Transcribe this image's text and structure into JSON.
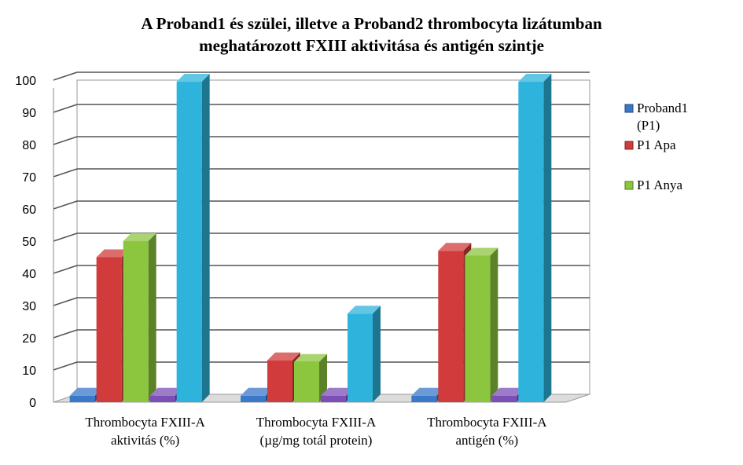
{
  "chart_data": {
    "type": "bar",
    "title": [
      "A Proband1 és szülei, illetve a Proband2 thrombocyta lizátumban",
      "meghatározott FXIII aktivitása és antigén szintje"
    ],
    "categories": [
      [
        "Thrombocyta FXIII-A",
        "aktivitás (%)"
      ],
      [
        "Thrombocyta FXIII-A",
        "(µg/mg totál protein)"
      ],
      [
        "Thrombocyta FXIII-A",
        "antigén (%)"
      ]
    ],
    "ylim": [
      0,
      100
    ],
    "yticks": [
      "0",
      "10",
      "20",
      "30",
      "40",
      "50",
      "60",
      "70",
      "80",
      "90",
      "100"
    ],
    "grid": true,
    "legend_position": "right",
    "series": [
      {
        "name": [
          "Proband1",
          "(P1)"
        ],
        "color": "#3a78c9",
        "values": [
          2,
          2,
          2
        ],
        "show_in_legend": true
      },
      {
        "name": [
          "P1 Apa"
        ],
        "color": "#d13b3b",
        "values": [
          45,
          13,
          47
        ],
        "show_in_legend": true
      },
      {
        "name": [
          "P1 Anya"
        ],
        "color": "#8cc63f",
        "values": [
          50,
          12.5,
          45.5
        ],
        "show_in_legend": true
      },
      {
        "name": [],
        "color": "#7b4fb5",
        "values": [
          2,
          2,
          2
        ],
        "show_in_legend": false
      },
      {
        "name": [],
        "color": "#2eb4dc",
        "values": [
          99.5,
          27.5,
          99.5
        ],
        "show_in_legend": false
      }
    ]
  }
}
